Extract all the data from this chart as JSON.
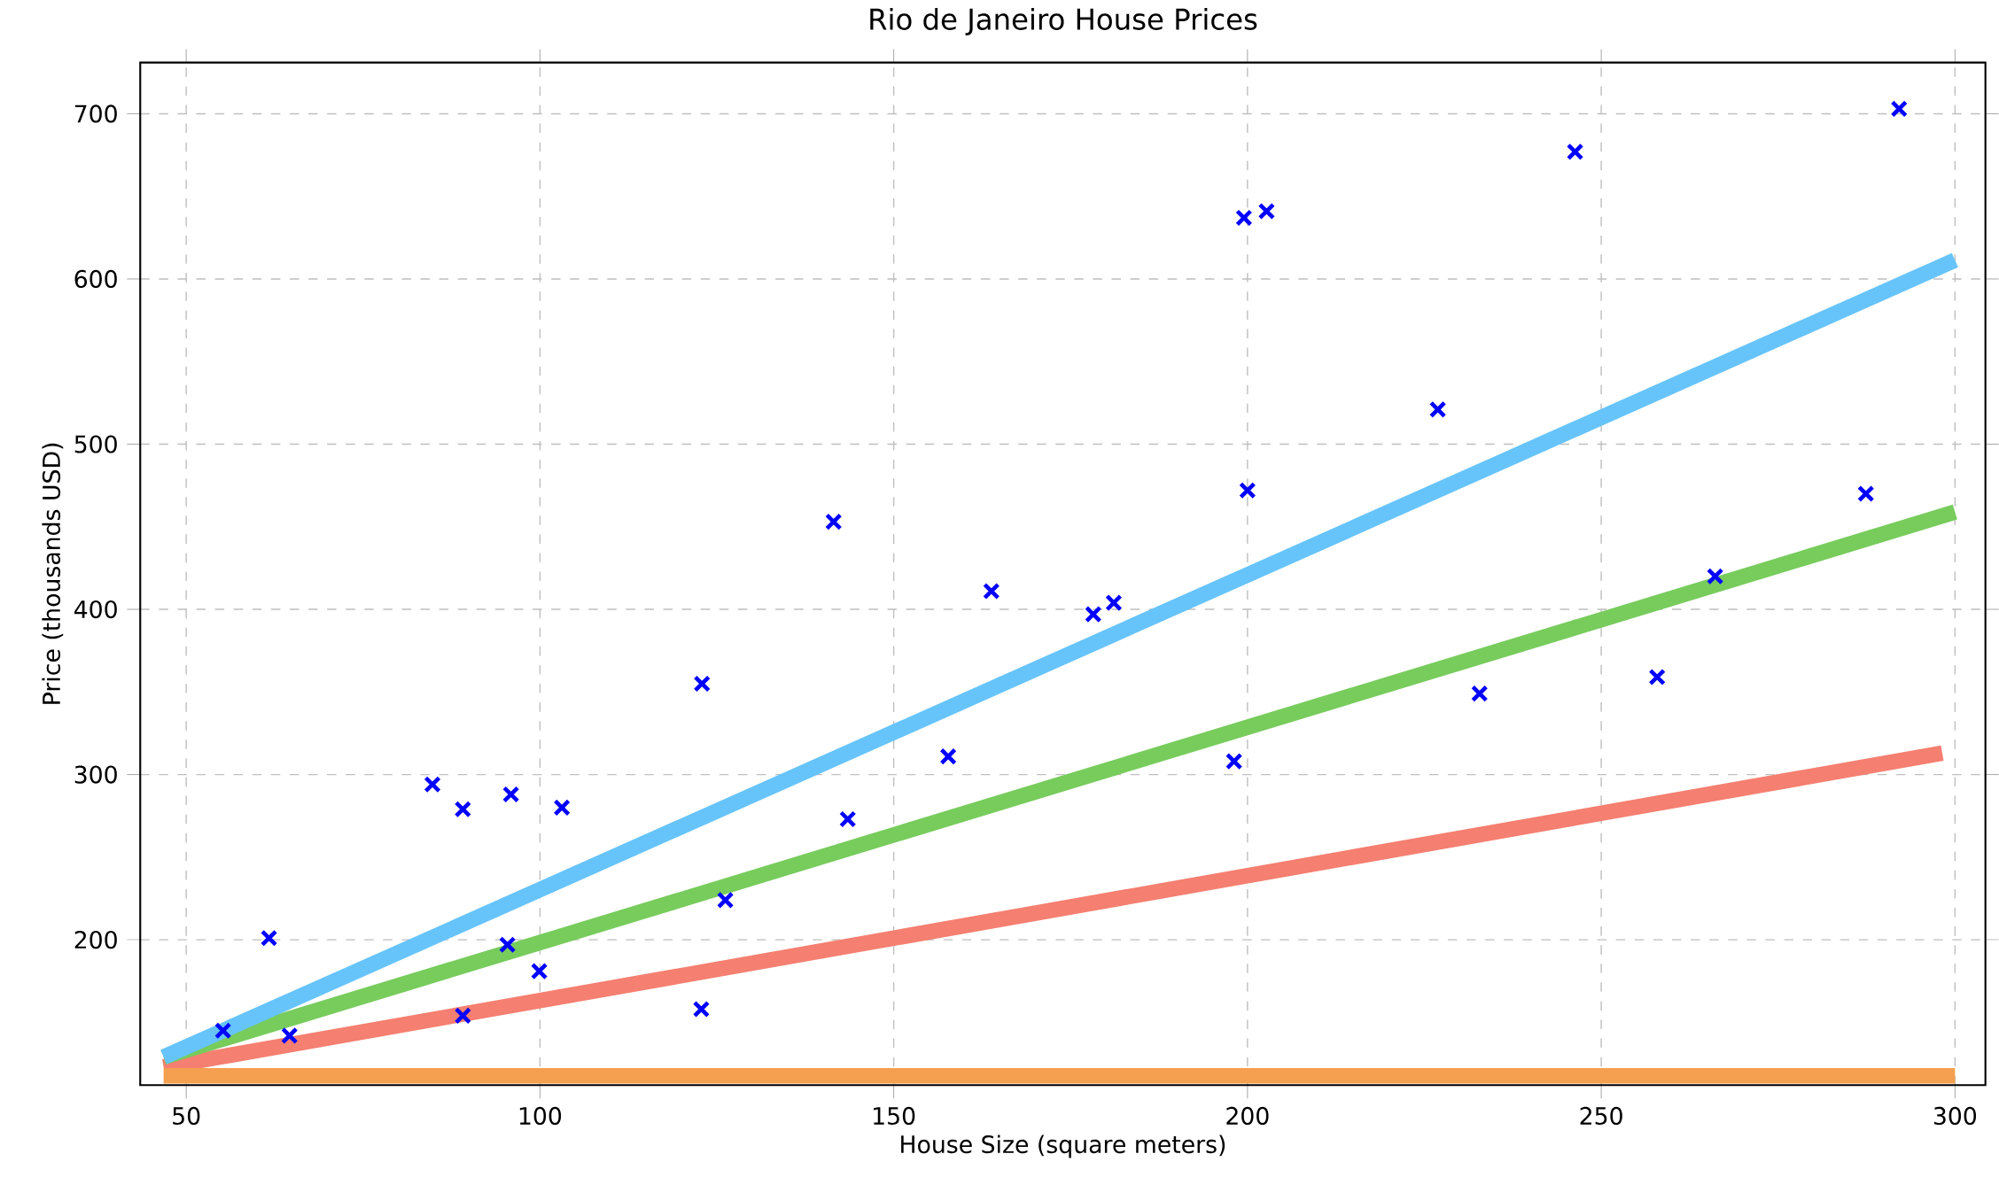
{
  "chart_data": {
    "type": "scatter",
    "title": "Rio de Janeiro House Prices",
    "xlabel": "House Size (square meters)",
    "ylabel": "Price (thousands USD)",
    "xlim": [
      43.5,
      304.3
    ],
    "ylim": [
      112,
      731
    ],
    "xticks": [
      50,
      100,
      150,
      200,
      250,
      300
    ],
    "yticks": [
      200,
      300,
      400,
      500,
      600,
      700
    ],
    "grid": true,
    "series": [
      {
        "marker": "cross",
        "color": "#0000ff",
        "x": [
          55.2,
          61.7,
          64.6,
          84.8,
          89.1,
          89.1,
          95.9,
          95.4,
          99.9,
          103.1,
          122.8,
          122.9,
          126.2,
          141.5,
          143.5,
          157.7,
          163.8,
          178.2,
          181.1,
          198.1,
          199.5,
          200.0,
          202.7,
          226.9,
          232.8,
          246.3,
          257.9,
          266.1,
          287.4,
          292.1
        ],
        "values": [
          145,
          201,
          142,
          294,
          279,
          154,
          288,
          197,
          181,
          280,
          158,
          355,
          224,
          453,
          273,
          311,
          411,
          397,
          404,
          308,
          637,
          472,
          641,
          521,
          349,
          677,
          359,
          420,
          470,
          703
        ]
      },
      {
        "type": "line",
        "color": "#f57f70",
        "x": [
          46.8,
          298.2
        ],
        "values": [
          123,
          313
        ]
      },
      {
        "type": "line",
        "color": "#f5a050",
        "x": [
          46.8,
          300
        ],
        "values": [
          117.6,
          117.6
        ]
      },
      {
        "type": "line",
        "color": "#77cc5c",
        "x": [
          46.8,
          300
        ],
        "values": [
          129,
          458.9
        ]
      },
      {
        "type": "line",
        "color": "#66c4fa",
        "x": [
          46.8,
          300
        ],
        "values": [
          129,
          611.4
        ]
      }
    ]
  }
}
